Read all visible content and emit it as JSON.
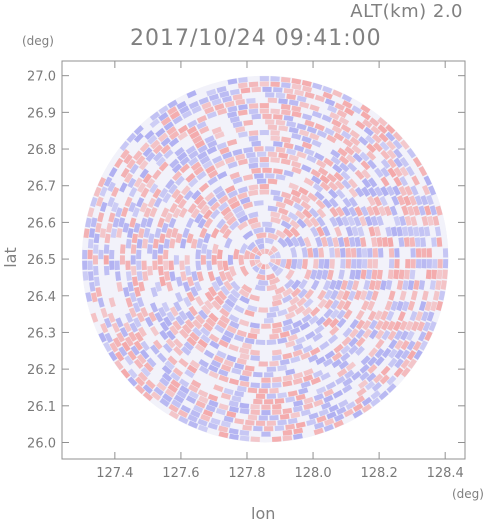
{
  "chart_data": {
    "type": "heatmap",
    "title": "2017/10/24 09:41:00",
    "subtitle": "ALT(km)  2.0",
    "xlabel": "lon",
    "ylabel": "lat",
    "x_unit": "(deg)",
    "y_unit": "(deg)",
    "xlim": [
      127.24,
      128.46
    ],
    "ylim": [
      25.955,
      27.04
    ],
    "x_ticks": [
      "127.4",
      "127.6",
      "127.8",
      "128.0",
      "128.2",
      "128.4"
    ],
    "y_ticks": [
      "26.0",
      "26.1",
      "26.2",
      "26.3",
      "26.4",
      "26.5",
      "26.6",
      "26.7",
      "26.8",
      "26.9",
      "27.0"
    ],
    "radar_center": [
      127.855,
      26.5
    ],
    "radar_radius_deg_lat": 0.5,
    "colors": {
      "positive": "#f4a0a0",
      "negative": "#a8a8f0",
      "neutral": "#f2f2fa",
      "axes": "#909090"
    },
    "grid": false
  }
}
